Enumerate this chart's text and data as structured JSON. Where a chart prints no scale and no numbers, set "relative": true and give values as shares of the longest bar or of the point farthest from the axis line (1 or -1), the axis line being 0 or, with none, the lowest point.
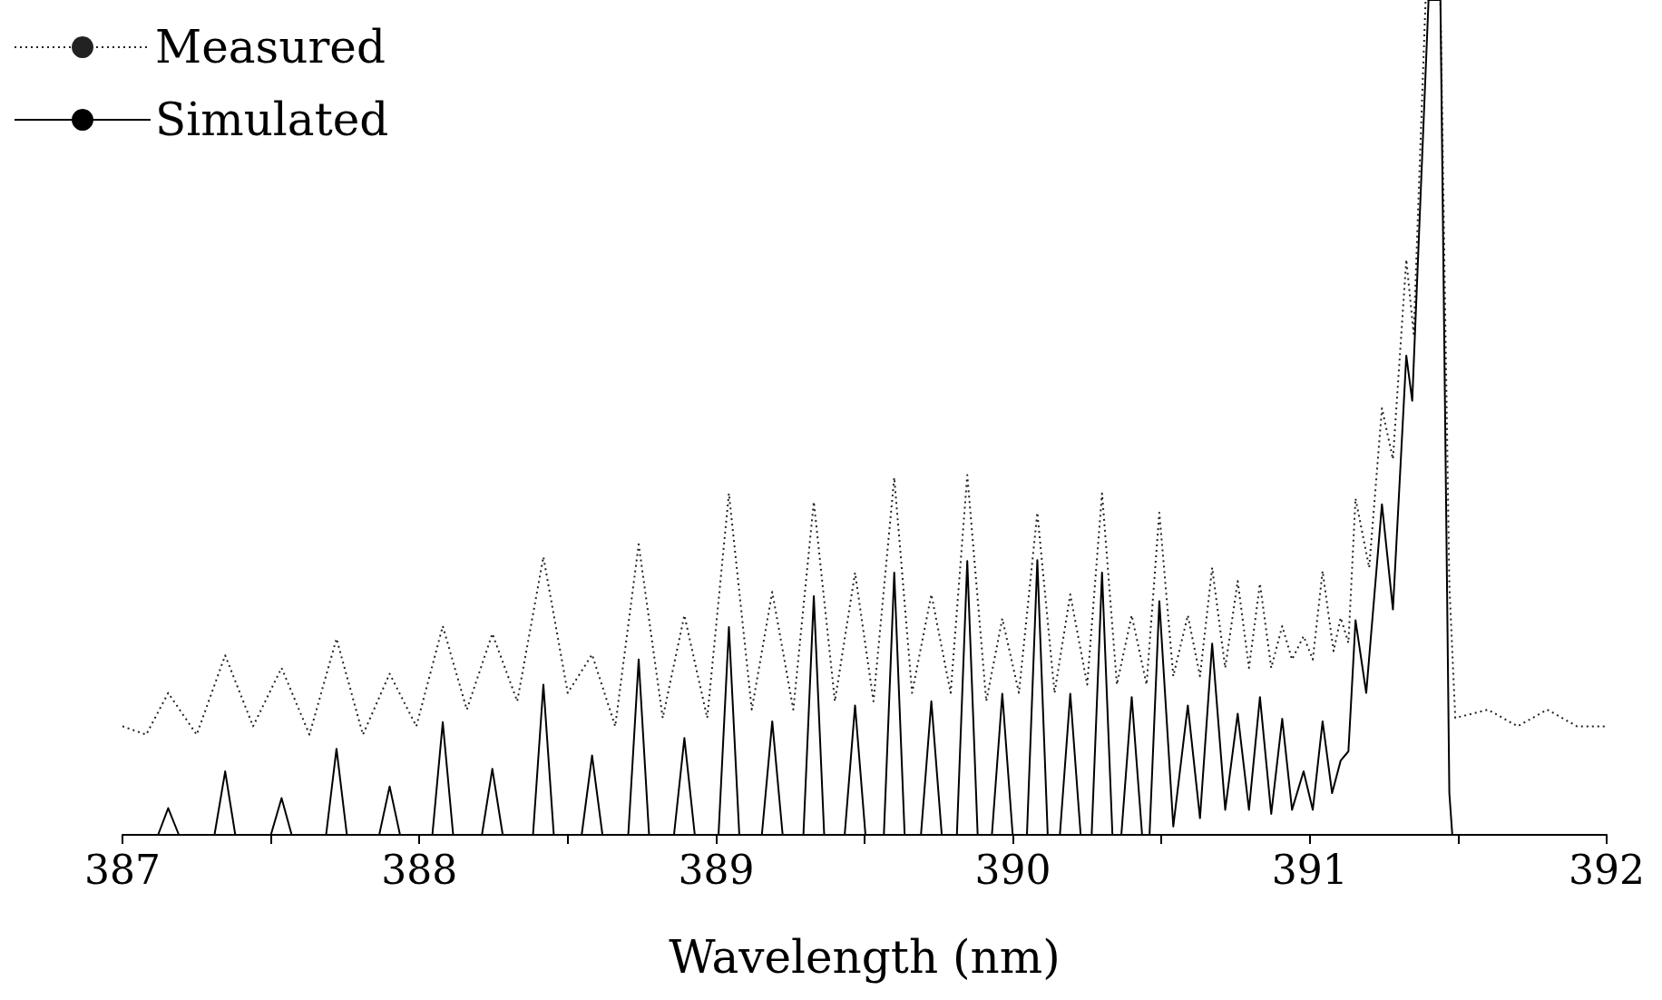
{
  "chart_data": {
    "type": "line",
    "xlabel": "Wavelength (nm)",
    "relative": true,
    "legend": "top left",
    "grid": false,
    "marker": "none",
    "xlim": [
      387,
      392
    ],
    "xticks": [
      387,
      {
        "value": 387.5,
        "label": null
      },
      388,
      {
        "value": 388.5,
        "label": null
      },
      389,
      {
        "value": 389.5,
        "label": null
      },
      390,
      {
        "value": 390.5,
        "label": null
      },
      391,
      {
        "value": 391.5,
        "label": null
      },
      392
    ],
    "series": [
      {
        "name": "Measured",
        "color": "#222222",
        "line_style": "dotted",
        "x": [
          387.0,
          387.08,
          387.154,
          387.25,
          387.346,
          387.44,
          387.536,
          387.63,
          387.721,
          387.81,
          387.9,
          387.99,
          388.079,
          388.16,
          388.246,
          388.33,
          388.418,
          388.5,
          388.582,
          388.66,
          388.739,
          388.82,
          388.893,
          388.97,
          389.043,
          389.12,
          389.189,
          389.26,
          389.329,
          389.4,
          389.468,
          389.53,
          389.6,
          389.66,
          389.725,
          389.79,
          389.846,
          389.91,
          389.964,
          390.02,
          390.082,
          390.14,
          390.193,
          390.25,
          390.3,
          390.35,
          390.4,
          390.45,
          390.493,
          390.54,
          390.589,
          390.63,
          390.671,
          390.715,
          390.757,
          390.795,
          390.832,
          390.87,
          390.907,
          390.94,
          390.979,
          391.01,
          391.043,
          391.08,
          391.104,
          391.13,
          391.154,
          391.2,
          391.243,
          391.28,
          391.325,
          391.35,
          391.39,
          391.44,
          391.47,
          391.49,
          391.6,
          391.7,
          391.8,
          391.9,
          392.0
        ],
        "values": [
          0.13,
          0.12,
          0.17,
          0.12,
          0.215,
          0.13,
          0.2,
          0.12,
          0.235,
          0.12,
          0.193,
          0.13,
          0.25,
          0.15,
          0.241,
          0.16,
          0.333,
          0.17,
          0.216,
          0.13,
          0.348,
          0.14,
          0.263,
          0.14,
          0.409,
          0.15,
          0.291,
          0.15,
          0.399,
          0.16,
          0.314,
          0.16,
          0.428,
          0.17,
          0.288,
          0.17,
          0.431,
          0.16,
          0.259,
          0.17,
          0.386,
          0.17,
          0.288,
          0.18,
          0.409,
          0.18,
          0.263,
          0.18,
          0.386,
          0.19,
          0.263,
          0.19,
          0.32,
          0.2,
          0.304,
          0.2,
          0.301,
          0.2,
          0.25,
          0.21,
          0.238,
          0.21,
          0.316,
          0.22,
          0.26,
          0.23,
          0.403,
          0.32,
          0.511,
          0.45,
          0.689,
          0.6,
          1,
          1,
          0.3,
          0.14,
          0.15,
          0.13,
          0.15,
          0.13,
          0.13
        ]
      },
      {
        "name": "Simulated",
        "color": "#000000",
        "line_style": "solid",
        "x": [
          387.0,
          387.12,
          387.154,
          387.19,
          387.31,
          387.346,
          387.38,
          387.5,
          387.536,
          387.57,
          387.686,
          387.721,
          387.756,
          387.865,
          387.9,
          387.935,
          388.044,
          388.079,
          388.114,
          388.211,
          388.246,
          388.281,
          388.383,
          388.418,
          388.453,
          388.547,
          388.582,
          388.617,
          388.704,
          388.739,
          388.774,
          388.858,
          388.893,
          388.928,
          389.008,
          389.043,
          389.078,
          389.154,
          389.189,
          389.224,
          389.294,
          389.329,
          389.364,
          389.433,
          389.468,
          389.503,
          389.565,
          389.6,
          389.635,
          389.69,
          389.725,
          389.76,
          389.811,
          389.846,
          389.881,
          389.929,
          389.964,
          389.999,
          390.047,
          390.082,
          390.117,
          390.158,
          390.193,
          390.228,
          390.265,
          390.3,
          390.335,
          390.365,
          390.4,
          390.435,
          390.46,
          390.493,
          390.54,
          390.589,
          390.63,
          390.671,
          390.715,
          390.757,
          390.795,
          390.832,
          390.87,
          390.907,
          390.94,
          390.979,
          391.01,
          391.043,
          391.075,
          391.104,
          391.13,
          391.154,
          391.19,
          391.243,
          391.28,
          391.325,
          391.345,
          391.4,
          391.44,
          391.47,
          391.48,
          392.0
        ],
        "values": [
          0,
          0,
          0.032,
          0,
          0,
          0.076,
          0,
          0,
          0.044,
          0,
          0,
          0.103,
          0,
          0,
          0.058,
          0,
          0,
          0.135,
          0,
          0,
          0.079,
          0,
          0,
          0.18,
          0,
          0,
          0.095,
          0,
          0,
          0.21,
          0,
          0,
          0.116,
          0,
          0,
          0.249,
          0,
          0,
          0.136,
          0,
          0,
          0.286,
          0,
          0,
          0.155,
          0,
          0,
          0.314,
          0,
          0,
          0.16,
          0,
          0,
          0.328,
          0,
          0,
          0.169,
          0,
          0,
          0.329,
          0,
          0,
          0.169,
          0,
          0,
          0.314,
          0,
          0,
          0.165,
          0,
          0,
          0.28,
          0.01,
          0.155,
          0.02,
          0.229,
          0.03,
          0.145,
          0.03,
          0.165,
          0.025,
          0.139,
          0.03,
          0.076,
          0.03,
          0.136,
          0.05,
          0.089,
          0.1,
          0.257,
          0.17,
          0.396,
          0.27,
          0.574,
          0.52,
          1,
          1,
          0.05,
          0,
          0
        ]
      }
    ]
  }
}
